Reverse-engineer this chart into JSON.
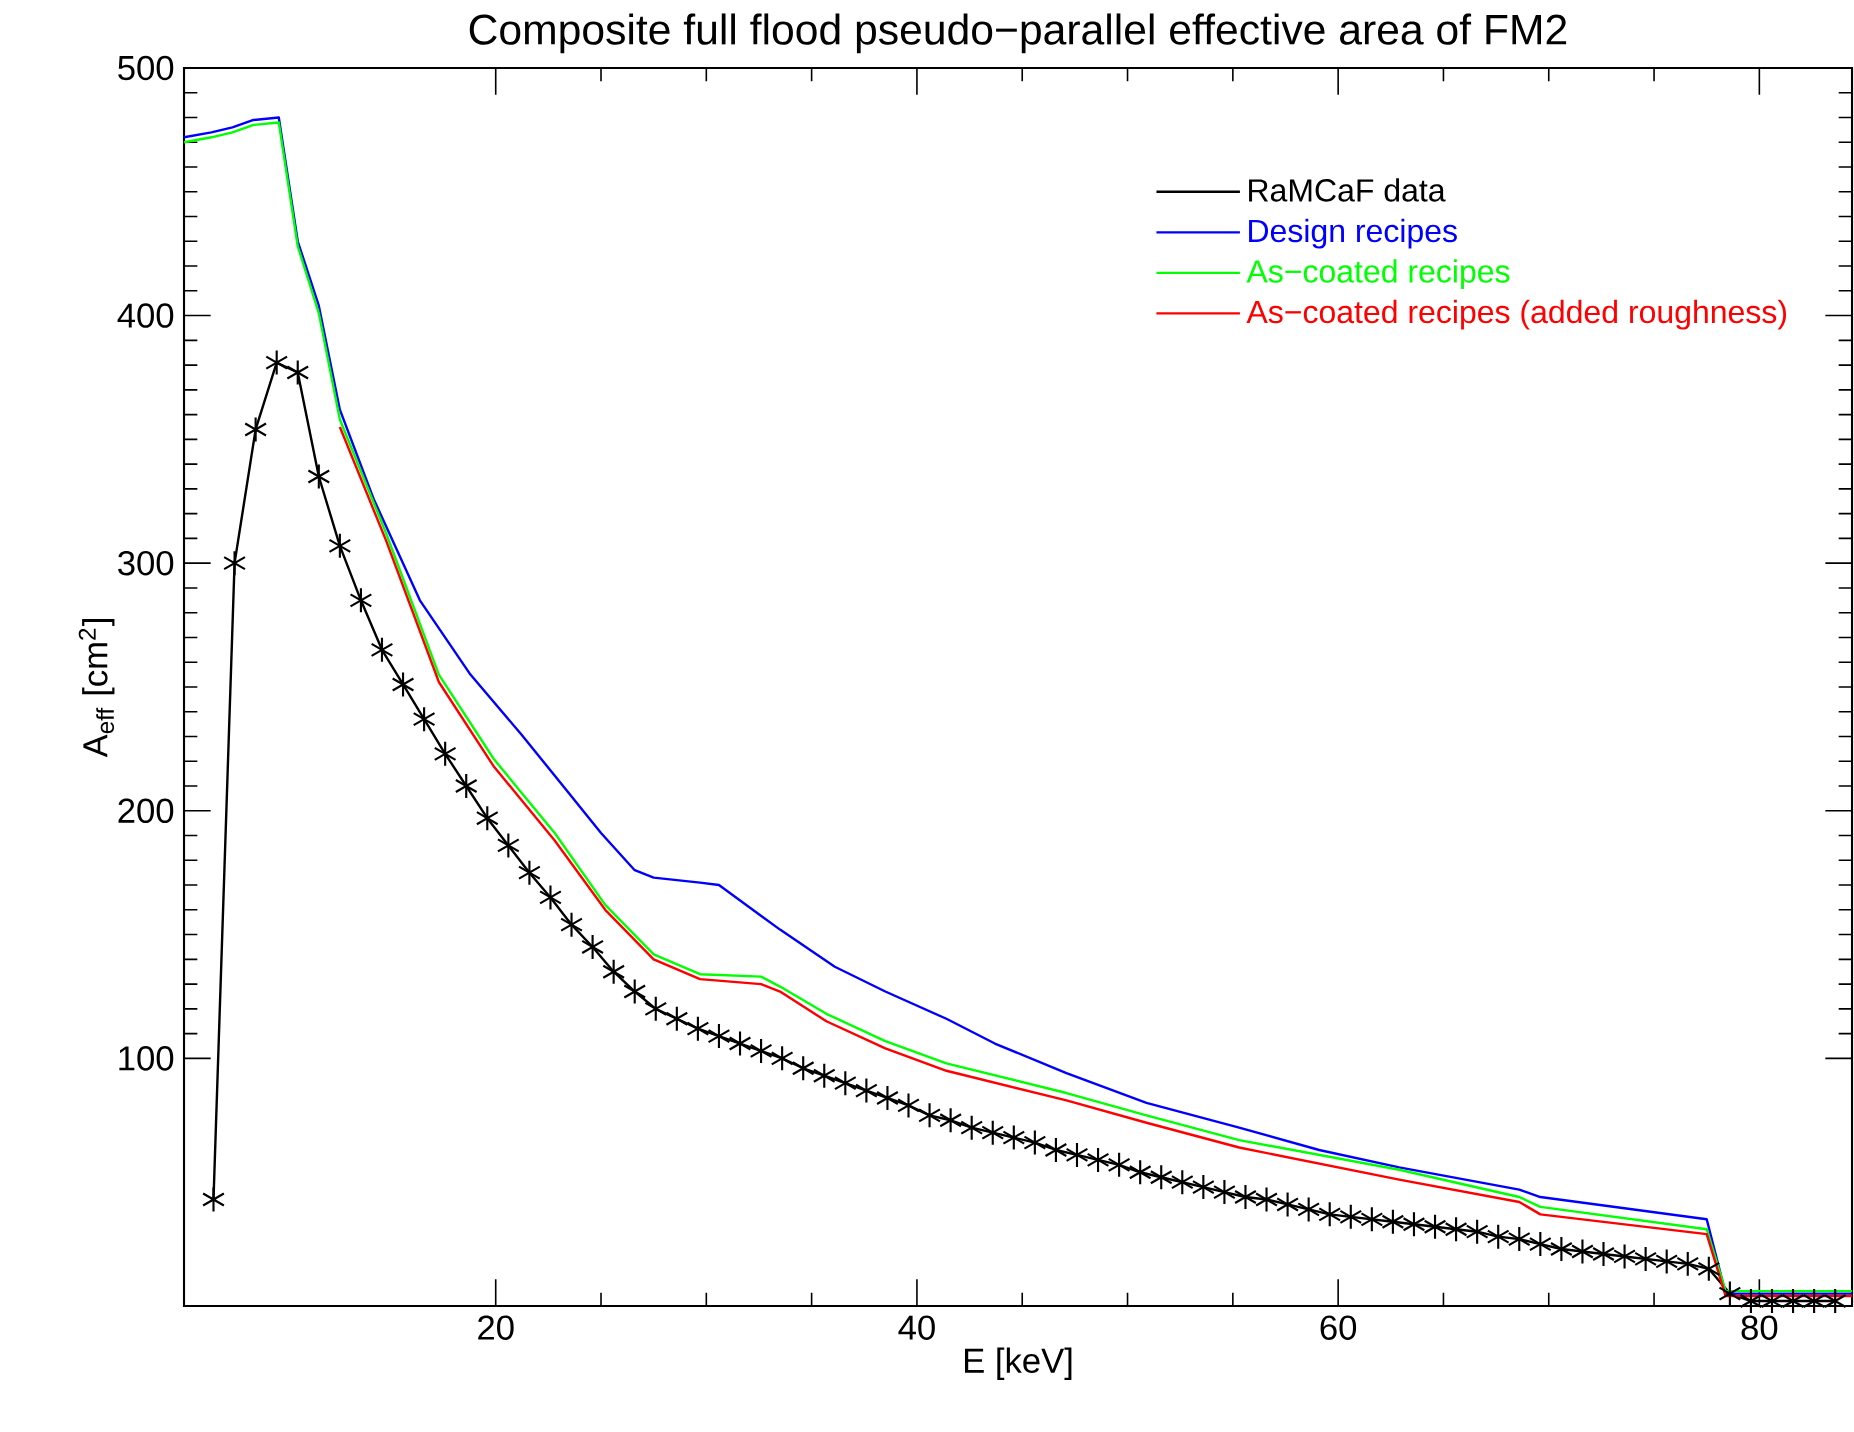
{
  "chart_data": {
    "type": "line",
    "title": "Composite full flood pseudo−parallel effective area of FM2",
    "xlabel": "E [keV]",
    "ylabel": "A$_{eff}$ [cm$^{2}$]",
    "xlim": [
      5.2,
      84.4
    ],
    "ylim": [
      0,
      500
    ],
    "xticks": [
      20,
      40,
      60,
      80
    ],
    "yticks": [
      100,
      200,
      300,
      400,
      500
    ],
    "grid": false,
    "legend": "top right",
    "series": [
      {
        "name": "RaMCaF data",
        "color": "#000000",
        "marker": "cross",
        "line_style": "solid",
        "x": [
          6.6,
          7.6,
          8.6,
          9.6,
          10.6,
          11.6,
          12.6,
          13.6,
          14.6,
          15.6,
          16.6,
          17.6,
          18.6,
          19.6,
          20.6,
          21.6,
          22.6,
          23.6,
          24.6,
          25.6,
          26.6,
          27.6,
          28.6,
          29.6,
          30.6,
          31.6,
          32.6,
          33.6,
          34.6,
          35.6,
          36.6,
          37.6,
          38.6,
          39.6,
          40.6,
          41.6,
          42.6,
          43.6,
          44.6,
          45.6,
          46.6,
          47.6,
          48.6,
          49.6,
          50.6,
          51.6,
          52.6,
          53.6,
          54.6,
          55.6,
          56.6,
          57.6,
          58.6,
          59.6,
          60.6,
          61.6,
          62.6,
          63.6,
          64.6,
          65.6,
          66.6,
          67.6,
          68.6,
          69.6,
          70.6,
          71.6,
          72.6,
          73.6,
          74.6,
          75.6,
          76.6,
          77.6,
          78.6,
          79.6,
          80.6,
          81.6,
          82.6,
          83.6
        ],
        "values": [
          43,
          300,
          354,
          381,
          377,
          335,
          307,
          285,
          265,
          251,
          237,
          223,
          210,
          197,
          186,
          175,
          165,
          154,
          145,
          135,
          127,
          120,
          116,
          112,
          109,
          106,
          103,
          100,
          96,
          93,
          90,
          87,
          84,
          81,
          77,
          75,
          72,
          70,
          68,
          66,
          63,
          61,
          59,
          57,
          54,
          52,
          50,
          48,
          46,
          44,
          43,
          41,
          39,
          37,
          36,
          35,
          34,
          33,
          32,
          31,
          30,
          28,
          27,
          25,
          23,
          22,
          21,
          20,
          19,
          18,
          17,
          15,
          5,
          2,
          2,
          2,
          2,
          2
        ]
      },
      {
        "name": "Design recipes",
        "color": "#0000ff",
        "marker": "none",
        "line_style": "solid",
        "x": [
          5.2,
          6.5,
          7.5,
          8.5,
          9.7,
          10.6,
          11.6,
          12.6,
          14.2,
          16.4,
          18.8,
          21.2,
          23.2,
          25,
          26.6,
          27.5,
          29.7,
          30.6,
          33.5,
          36.1,
          38.5,
          41.4,
          43.7,
          47.1,
          50.9,
          55.3,
          59.1,
          62.9,
          68.6,
          69.6,
          77.5,
          78.4,
          84.4
        ],
        "values": [
          472,
          474,
          476,
          479,
          480,
          430,
          404,
          362,
          326,
          285,
          255,
          231,
          210,
          191,
          176,
          173,
          171,
          170,
          152,
          137,
          127,
          116,
          106,
          94,
          82,
          72,
          63,
          56,
          47,
          44,
          35,
          5,
          5
        ]
      },
      {
        "name": "As−coated recipes",
        "color": "#00ff00",
        "marker": "none",
        "line_style": "solid",
        "x": [
          5.2,
          6.5,
          7.5,
          8.5,
          9.7,
          10.6,
          11.6,
          12.6,
          14.8,
          17.3,
          19.9,
          22.8,
          25.2,
          27.5,
          29.7,
          32.6,
          33.5,
          35.7,
          38.5,
          41.4,
          47.1,
          50.9,
          55.3,
          62.9,
          68.6,
          69.6,
          77.5,
          78.4,
          84.4
        ],
        "values": [
          470,
          472,
          474,
          477,
          478,
          428,
          401,
          358,
          312,
          255,
          221,
          191,
          162,
          142,
          134,
          133,
          129,
          118,
          107,
          98,
          86,
          77,
          67,
          55,
          44,
          40,
          31,
          6,
          6
        ]
      },
      {
        "name": "As−coated recipes (added roughness)",
        "color": "#ff0000",
        "marker": "none",
        "line_style": "solid",
        "x": [
          12.6,
          14.8,
          17.3,
          19.9,
          22.8,
          25.2,
          27.5,
          29.7,
          32.6,
          33.5,
          35.7,
          38.5,
          41.4,
          47.1,
          50.9,
          55.3,
          62.9,
          68.6,
          69.6,
          77.5,
          78.4,
          84.4
        ],
        "values": [
          355,
          309,
          252,
          218,
          188,
          160,
          140,
          132,
          130,
          127,
          115,
          104,
          95,
          83,
          74,
          64,
          51,
          42,
          37,
          29,
          4,
          4
        ]
      }
    ]
  }
}
